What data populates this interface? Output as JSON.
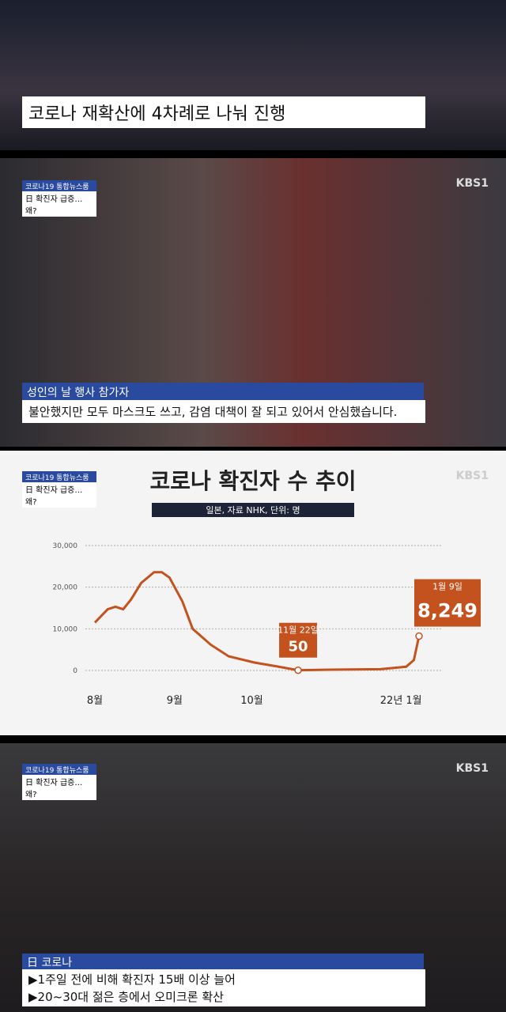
{
  "frame1": {
    "caption": "코로나 재확산에 4차례로 나눠 진행"
  },
  "frame2": {
    "badge": "코로나19 통합뉴스룸",
    "badge_sub": "日 확진자 급증…왜?",
    "logo": "KBS1",
    "speaker": "성인의 날 행사 참가자",
    "quote": "불안했지만 모두 마스크도 쓰고, 감염 대책이 잘 되고 있어서 안심했습니다."
  },
  "frame3": {
    "badge": "코로나19 통합뉴스룸",
    "badge_sub": "日 확진자 급증…왜?",
    "logo": "KBS1"
  },
  "chart_data": {
    "type": "line",
    "title": "코로나 확진자 수 추이",
    "subtitle": "일본, 자료 NHK, 단위: 명",
    "x": [
      0,
      5,
      8,
      11,
      14,
      18,
      23,
      26,
      29,
      34,
      38,
      45,
      52,
      62,
      71,
      79,
      92,
      111,
      121,
      124,
      126
    ],
    "series": [
      {
        "color": "#c4521e",
        "values": [
          11500,
          14700,
          15300,
          14700,
          17000,
          21000,
          23600,
          23600,
          22300,
          16600,
          10000,
          6200,
          3400,
          1900,
          950,
          50,
          200,
          300,
          900,
          2500,
          8249
        ],
        "value_labels": [
          null,
          null,
          null,
          null,
          null,
          null,
          null,
          null,
          null,
          null,
          null,
          null,
          null,
          null,
          null,
          "50",
          null,
          null,
          null,
          null,
          "8,249"
        ],
        "point_labels": [
          null,
          null,
          null,
          null,
          null,
          null,
          null,
          null,
          null,
          null,
          null,
          null,
          null,
          null,
          null,
          "11월 22일",
          null,
          null,
          null,
          null,
          "1월 9일"
        ]
      }
    ],
    "xlim": [
      0,
      126
    ],
    "xticks": [
      {
        "value": 0,
        "label": "8월"
      },
      {
        "value": 31,
        "label": "9월"
      },
      {
        "value": 61,
        "label": "10월"
      },
      {
        "value": 119,
        "label": "22년 1월"
      }
    ],
    "ylim": [
      0,
      30000
    ],
    "yticks": [
      0,
      {
        "value": 10000,
        "label": "10,000"
      },
      {
        "value": 20000,
        "label": "20,000"
      },
      {
        "value": 30000,
        "label": "30,000"
      }
    ],
    "grid": true
  },
  "frame4": {
    "badge": "코로나19 통합뉴스룸",
    "badge_sub": "日 확진자 급증…왜?",
    "logo": "KBS1",
    "title": "日 코로나",
    "lines": [
      "▶1주일 전에 비해 확진자 15배 이상 늘어",
      "▶20~30대 젊은 층에서 오미크론 확산"
    ]
  }
}
